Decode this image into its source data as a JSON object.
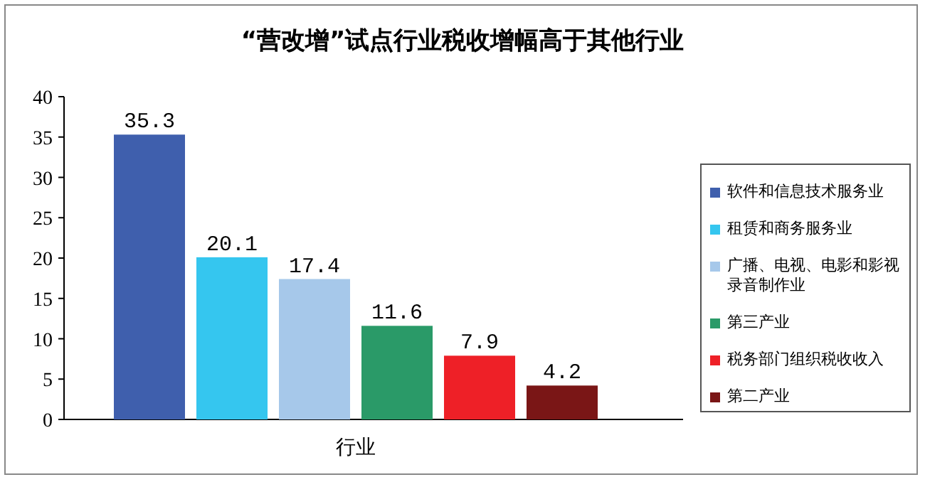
{
  "chart_data": {
    "type": "bar",
    "title": "“营改增”试点行业税收增幅高于其他行业",
    "categories": [
      "行业"
    ],
    "series": [
      {
        "name": "软件和信息技术服务业",
        "color": "#3f5fad",
        "values": [
          35.3
        ]
      },
      {
        "name": "租赁和商务服务业",
        "color": "#35c6ef",
        "values": [
          20.1
        ]
      },
      {
        "name": "广播、电视、电影和影视录音制作业",
        "color": "#a6c8ea",
        "values": [
          17.4
        ]
      },
      {
        "name": "第三产业",
        "color": "#2a9a68",
        "values": [
          11.6
        ]
      },
      {
        "name": "税务部门组织税收收入",
        "color": "#ee2027",
        "values": [
          7.9
        ]
      },
      {
        "name": "第二产业",
        "color": "#7a1616",
        "values": [
          4.2
        ]
      }
    ],
    "ylim": [
      0,
      40
    ],
    "yticks": [
      0,
      5,
      10,
      15,
      20,
      25,
      30,
      35,
      40
    ],
    "data_labels": true,
    "grid": false,
    "legend": "right"
  }
}
